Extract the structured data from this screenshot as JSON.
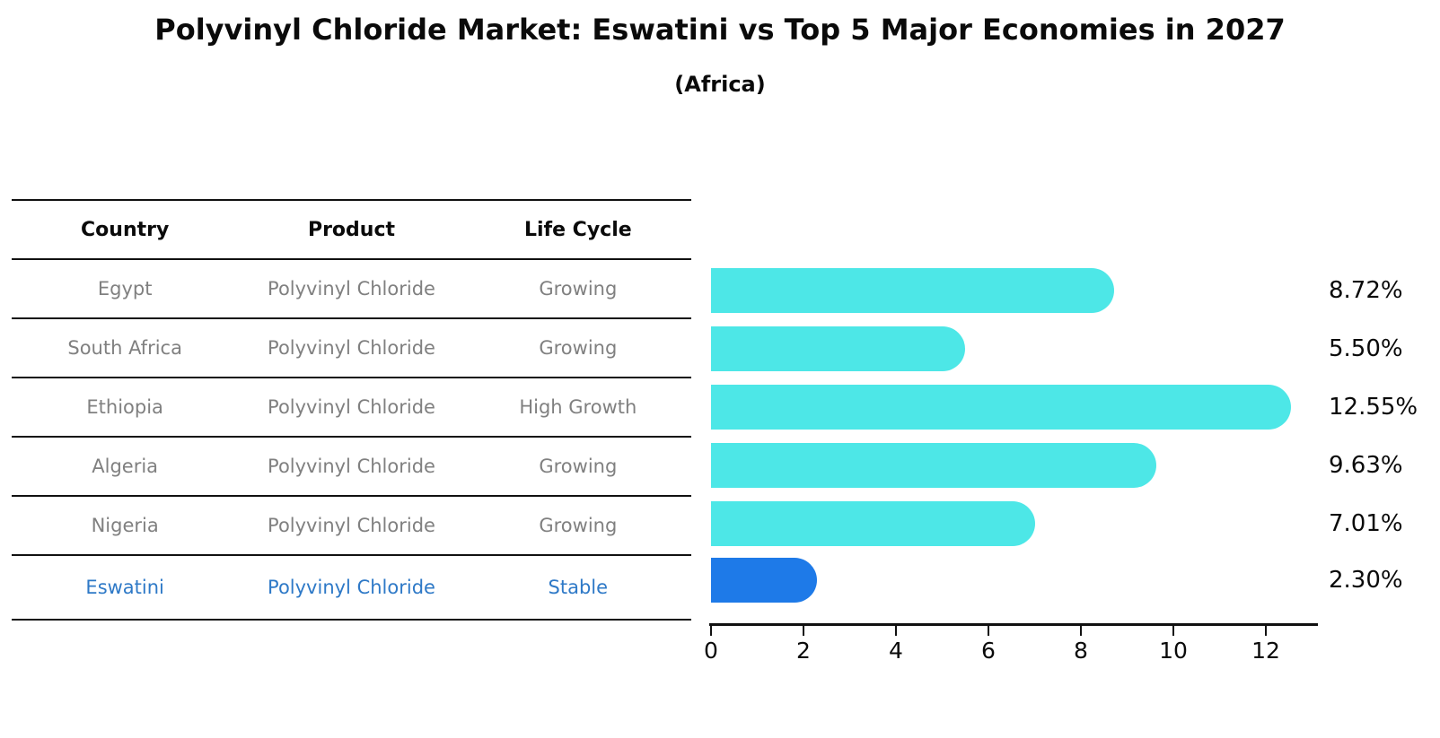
{
  "title": "Polyvinyl Chloride Market: Eswatini vs Top 5 Major Economies in 2027",
  "subtitle": "(Africa)",
  "table": {
    "headers": [
      "Country",
      "Product",
      "Life Cycle"
    ],
    "rows": [
      {
        "country": "Egypt",
        "product": "Polyvinyl Chloride",
        "life_cycle": "Growing"
      },
      {
        "country": "South Africa",
        "product": "Polyvinyl Chloride",
        "life_cycle": "Growing"
      },
      {
        "country": "Ethiopia",
        "product": "Polyvinyl Chloride",
        "life_cycle": "High Growth"
      },
      {
        "country": "Algeria",
        "product": "Polyvinyl Chloride",
        "life_cycle": "Growing"
      },
      {
        "country": "Nigeria",
        "product": "Polyvinyl Chloride",
        "life_cycle": "Growing"
      },
      {
        "country": "Eswatini",
        "product": "Polyvinyl Chloride",
        "life_cycle": "Stable"
      }
    ]
  },
  "chart_data": {
    "type": "bar",
    "orientation": "horizontal",
    "title": "Polyvinyl Chloride Market: Eswatini vs Top 5 Major Economies in 2027",
    "subtitle": "(Africa)",
    "categories": [
      "Egypt",
      "South Africa",
      "Ethiopia",
      "Algeria",
      "Nigeria",
      "Eswatini"
    ],
    "values": [
      8.72,
      5.5,
      12.55,
      9.63,
      7.01,
      2.3
    ],
    "value_labels": [
      "8.72%",
      "5.50%",
      "12.55%",
      "9.63%",
      "7.01%",
      "2.30%"
    ],
    "x_ticks": [
      0,
      2,
      4,
      6,
      8,
      10,
      12
    ],
    "xlim": [
      0,
      13.1
    ],
    "grid": false,
    "legend": false,
    "highlight_index": 5,
    "bar_color": "#4de7e7",
    "highlight_color": "#1e7ae8",
    "highlight_text_color": "#2e79c7",
    "label_color": "#0a0a0a"
  }
}
